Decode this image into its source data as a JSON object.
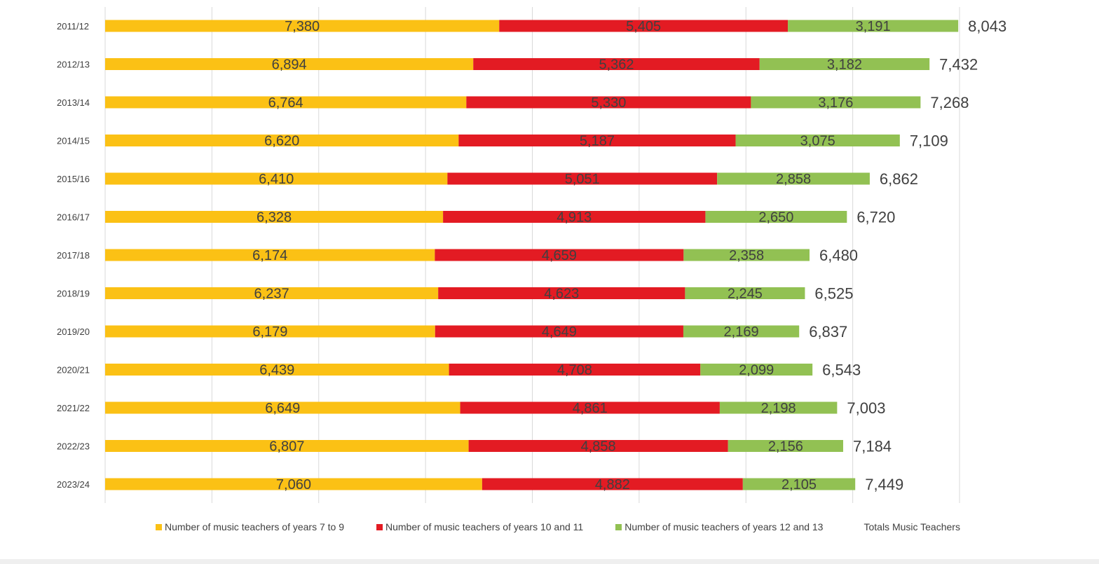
{
  "chart_data": {
    "type": "bar",
    "orientation": "horizontal",
    "stacked": true,
    "categories": [
      "2011/12",
      "2012/13",
      "2013/14",
      "2014/15",
      "2015/16",
      "2016/17",
      "2017/18",
      "2018/19",
      "2019/20",
      "2020/21",
      "2021/22",
      "2022/23",
      "2023/24"
    ],
    "series": [
      {
        "name": "Number of music teachers of years 7 to 9",
        "color": "#FBC115",
        "values": [
          7380,
          6894,
          6764,
          6620,
          6410,
          6328,
          6174,
          6237,
          6179,
          6439,
          6649,
          6807,
          7060
        ],
        "labels": [
          "7,380",
          "6,894",
          "6,764",
          "6,620",
          "6,410",
          "6,328",
          "6,174",
          "6,237",
          "6,179",
          "6,439",
          "6,649",
          "6,807",
          "7,060"
        ]
      },
      {
        "name": "Number of music teachers of years 10 and 11",
        "color": "#E31B23",
        "values": [
          5405,
          5362,
          5330,
          5187,
          5051,
          4913,
          4659,
          4623,
          4649,
          4708,
          4861,
          4858,
          4882
        ],
        "labels": [
          "5,405",
          "5,362",
          "5,330",
          "5,187",
          "5,051",
          "4,913",
          "4,659",
          "4,623",
          "4,649",
          "4,708",
          "4,861",
          "4,858",
          "4,882"
        ]
      },
      {
        "name": "Number of music teachers of years 12 and 13",
        "color": "#92C153",
        "values": [
          3191,
          3182,
          3176,
          3075,
          2858,
          2650,
          2358,
          2245,
          2169,
          2099,
          2198,
          2156,
          2105
        ],
        "labels": [
          "3,191",
          "3,182",
          "3,176",
          "3,075",
          "2,858",
          "2,650",
          "2,358",
          "2,245",
          "2,169",
          "2,099",
          "2,198",
          "2,156",
          "2,105"
        ]
      }
    ],
    "totals": {
      "name": "Totals Music Teachers",
      "values": [
        8043,
        7432,
        7268,
        7109,
        6862,
        6720,
        6480,
        6525,
        6837,
        6543,
        7003,
        7184,
        7449
      ],
      "labels": [
        "8,043",
        "7,432",
        "7,268",
        "7,109",
        "6,862",
        "6,720",
        "6,480",
        "6,525",
        "6,837",
        "6,543",
        "7,003",
        "7,184",
        "7,449"
      ]
    },
    "xlim": [
      0,
      16000
    ],
    "x_grid_step": 2000,
    "grid": true,
    "legend_position": "bottom"
  }
}
